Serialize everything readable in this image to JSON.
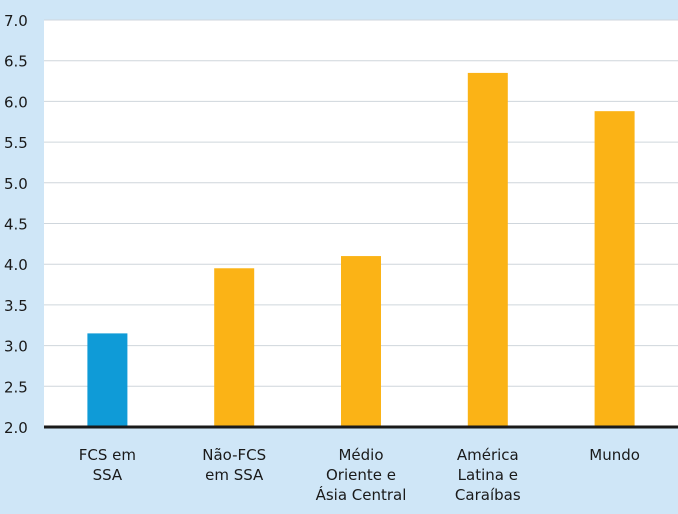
{
  "chart_data": {
    "type": "bar",
    "title": "",
    "xlabel": "",
    "ylabel": "",
    "ylim": [
      2.0,
      7.0
    ],
    "yticks": [
      "2.0",
      "2.5",
      "3.0",
      "3.5",
      "4.0",
      "4.5",
      "5.0",
      "5.5",
      "6.0",
      "6.5",
      "7.0"
    ],
    "categories": [
      [
        "FCS em",
        "SSA"
      ],
      [
        "Não-FCS",
        "em SSA"
      ],
      [
        "Médio",
        "Oriente e",
        "Ásia Central"
      ],
      [
        "América",
        "Latina e",
        "Caraíbas"
      ],
      [
        "Mundo"
      ]
    ],
    "values": [
      3.15,
      3.95,
      4.1,
      6.35,
      5.88
    ],
    "bar_colors": [
      "#0f9bd7",
      "#fbb316",
      "#fbb316",
      "#fbb316",
      "#fbb316"
    ],
    "colors": {
      "background": "#cfe6f7",
      "plot_background": "#ffffff",
      "grid": "#cfd6dc",
      "axis": "#1a1a1a"
    },
    "grid": true,
    "legend": "none"
  }
}
